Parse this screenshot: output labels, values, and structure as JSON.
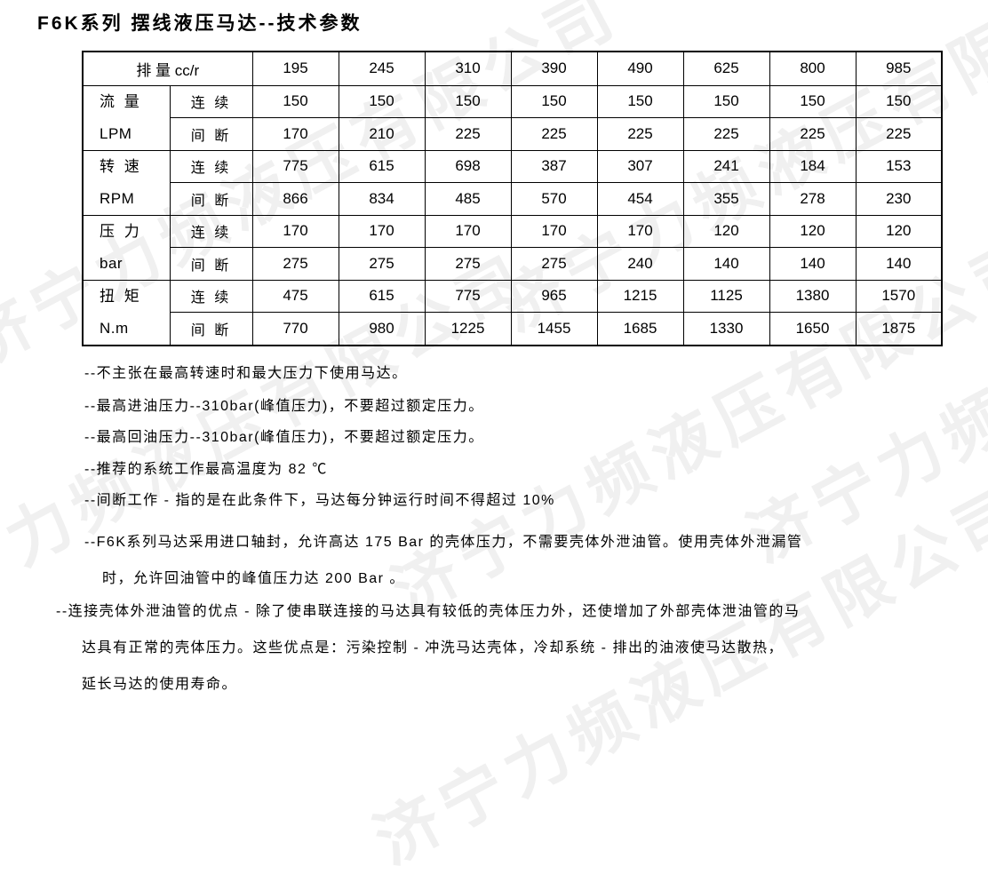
{
  "title": "F6K系列 摆线液压马达--技术参数",
  "watermark": {
    "text": "济宁力频液压有限公司",
    "color": "#f0f0f0"
  },
  "table": {
    "displacement_label": "排 量 cc/r",
    "displacements": [
      "195",
      "245",
      "310",
      "390",
      "490",
      "625",
      "800",
      "985"
    ],
    "row_groups": [
      {
        "name": "流 量",
        "unit": "LPM",
        "rows": [
          {
            "mode": "连 续",
            "values": [
              "150",
              "150",
              "150",
              "150",
              "150",
              "150",
              "150",
              "150"
            ]
          },
          {
            "mode": "间 断",
            "values": [
              "170",
              "210",
              "225",
              "225",
              "225",
              "225",
              "225",
              "225"
            ]
          }
        ]
      },
      {
        "name": "转 速",
        "unit": "RPM",
        "rows": [
          {
            "mode": "连 续",
            "values": [
              "775",
              "615",
              "698",
              "387",
              "307",
              "241",
              "184",
              "153"
            ]
          },
          {
            "mode": "间 断",
            "values": [
              "866",
              "834",
              "485",
              "570",
              "454",
              "355",
              "278",
              "230"
            ]
          }
        ]
      },
      {
        "name": "压 力",
        "unit": "bar",
        "rows": [
          {
            "mode": "连 续",
            "values": [
              "170",
              "170",
              "170",
              "170",
              "170",
              "120",
              "120",
              "120"
            ]
          },
          {
            "mode": "间 断",
            "values": [
              "275",
              "275",
              "275",
              "275",
              "240",
              "140",
              "140",
              "140"
            ]
          }
        ]
      },
      {
        "name": "扭 矩",
        "unit": "N.m",
        "rows": [
          {
            "mode": "连 续",
            "values": [
              "475",
              "615",
              "775",
              "965",
              "1215",
              "1125",
              "1380",
              "1570"
            ]
          },
          {
            "mode": "间 断",
            "values": [
              "770",
              "980",
              "1225",
              "1455",
              "1685",
              "1330",
              "1650",
              "1875"
            ]
          }
        ]
      }
    ]
  },
  "notes": [
    "--不主张在最高转速时和最大压力下使用马达。",
    "--最高进油压力--310bar(峰值压力)，不要超过额定压力。",
    "--最高回油压力--310bar(峰值压力)，不要超过额定压力。",
    "--推荐的系统工作最高温度为 82 ℃",
    "--间断工作 - 指的是在此条件下，马达每分钟运行时间不得超过 10%",
    "--F6K系列马达采用进口轴封，允许高达 175 Bar 的壳体压力，不需要壳体外泄油管。使用壳体外泄漏管",
    "时，允许回油管中的峰值压力达 200 Bar 。",
    "--连接壳体外泄油管的优点 - 除了使串联连接的马达具有较低的壳体压力外，还使增加了外部壳体泄油管的马",
    "达具有正常的壳体压力。这些优点是：污染控制 - 冲洗马达壳体，冷却系统 - 排出的油液使马达散热，",
    "延长马达的使用寿命。"
  ]
}
